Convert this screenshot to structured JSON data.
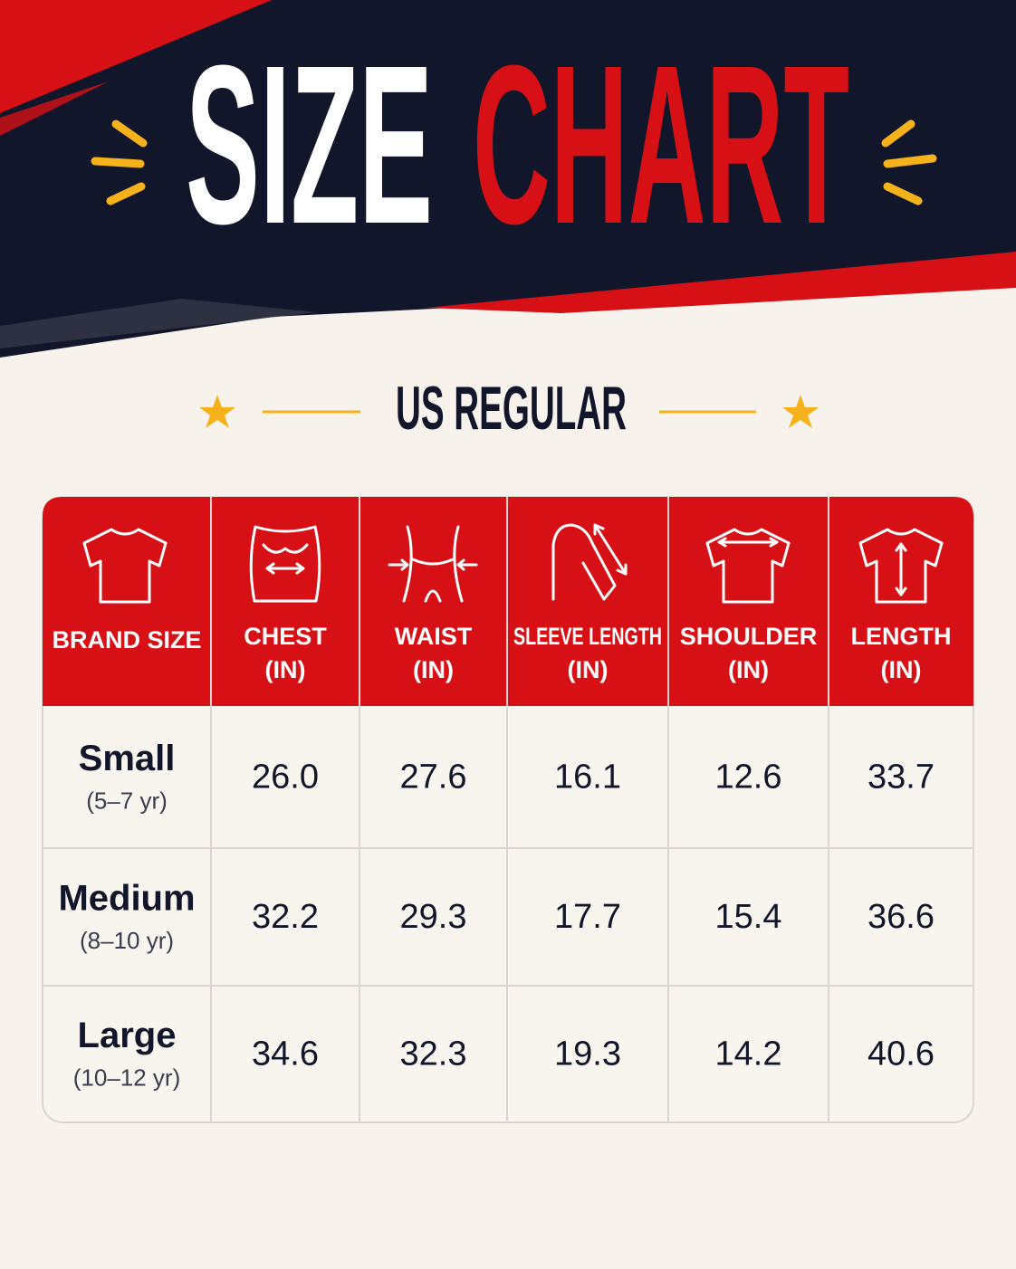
{
  "header": {
    "title_white": "SIZE",
    "title_red": "CHART",
    "subtitle": "US REGULAR"
  },
  "table": {
    "columns": [
      {
        "label": "BRAND SIZE"
      },
      {
        "label": "CHEST",
        "unit": "(IN)"
      },
      {
        "label": "WAIST",
        "unit": "(IN)"
      },
      {
        "label": "SLEEVE LENGTH",
        "unit": "(IN)"
      },
      {
        "label": "SHOULDER",
        "unit": "(IN)"
      },
      {
        "label": "LENGTH",
        "unit": "(IN)"
      }
    ],
    "rows": [
      {
        "size": "Small",
        "age": "(5–7 yr)",
        "values": [
          "26.0",
          "27.6",
          "16.1",
          "12.6",
          "33.7"
        ]
      },
      {
        "size": "Medium",
        "age": "(8–10 yr)",
        "values": [
          "32.2",
          "29.3",
          "17.7",
          "15.4",
          "36.6"
        ]
      },
      {
        "size": "Large",
        "age": "(10–12 yr)",
        "values": [
          "34.6",
          "32.3",
          "19.3",
          "14.2",
          "40.6"
        ]
      }
    ]
  }
}
